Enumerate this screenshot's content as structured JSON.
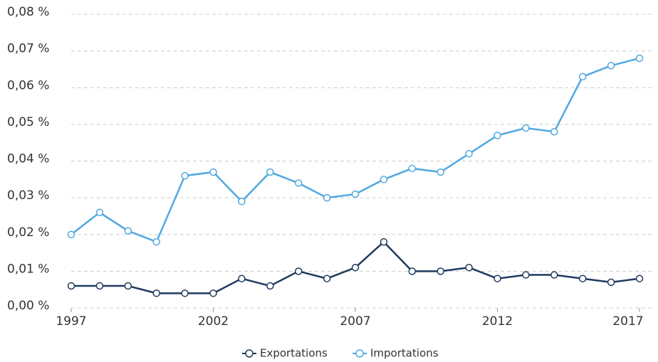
{
  "chart_data": {
    "type": "line",
    "x": [
      1997,
      1998,
      1999,
      2000,
      2001,
      2002,
      2003,
      2004,
      2005,
      2006,
      2007,
      2008,
      2009,
      2010,
      2011,
      2012,
      2013,
      2014,
      2015,
      2016,
      2017
    ],
    "series": [
      {
        "name": "Exportations",
        "color": "#1f3a5f",
        "values": [
          0.006,
          0.006,
          0.006,
          0.004,
          0.004,
          0.004,
          0.008,
          0.006,
          0.01,
          0.008,
          0.011,
          0.018,
          0.01,
          0.01,
          0.011,
          0.008,
          0.009,
          0.009,
          0.008,
          0.007,
          0.008
        ]
      },
      {
        "name": "Importations",
        "color": "#4fa8e0",
        "values": [
          0.02,
          0.026,
          0.021,
          0.018,
          0.036,
          0.037,
          0.029,
          0.037,
          0.034,
          0.03,
          0.031,
          0.035,
          0.038,
          0.037,
          0.042,
          0.047,
          0.049,
          0.048,
          0.063,
          0.066,
          0.068
        ]
      }
    ],
    "xlim": [
      1997,
      2017
    ],
    "xticks": [
      1997,
      2002,
      2007,
      2012,
      2017
    ],
    "ylim": [
      0,
      0.08
    ],
    "yticks": [
      {
        "value": 0,
        "label": "0,00 %"
      },
      {
        "value": 0.01,
        "label": "0,01 %"
      },
      {
        "value": 0.02,
        "label": "0,02 %"
      },
      {
        "value": 0.03,
        "label": "0,03 %"
      },
      {
        "value": 0.04,
        "label": "0,04 %"
      },
      {
        "value": 0.05,
        "label": "0,05 %"
      },
      {
        "value": 0.06,
        "label": "0,06 %"
      },
      {
        "value": 0.07,
        "label": "0,07 %"
      },
      {
        "value": 0.08,
        "label": "0,08 %"
      }
    ],
    "grid": true,
    "legend": "bottom"
  }
}
